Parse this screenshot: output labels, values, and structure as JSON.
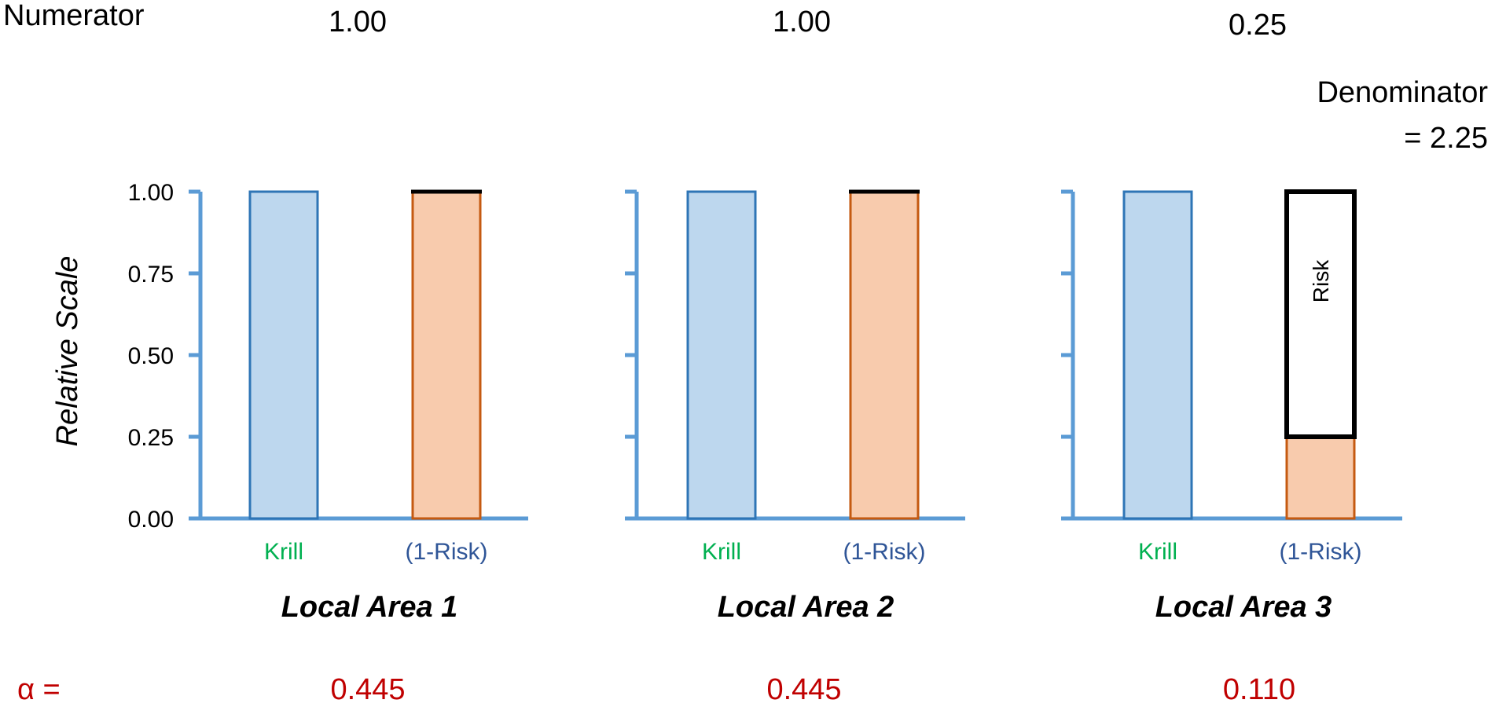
{
  "labels": {
    "numerator": "Numerator",
    "denominator_line1": "Denominator",
    "denominator_line2": "= 2.25",
    "alpha_label": "α ="
  },
  "colors": {
    "axis": "#5b9bd5",
    "krill_fill": "#bdd7ee",
    "krill_stroke": "#2e75b6",
    "one_minus_risk_fill": "#f8cbad",
    "one_minus_risk_stroke": "#c55a11",
    "risk_stroke": "#000000",
    "krill_label": "#00b050",
    "one_minus_risk_label": "#2f5597",
    "alpha": "#c00000",
    "text": "#000000"
  },
  "chart_data": {
    "type": "bar",
    "ylabel": "Relative Scale",
    "ylim": [
      0,
      1
    ],
    "yticks": [
      "0.00",
      "0.25",
      "0.50",
      "0.75",
      "1.00"
    ],
    "yticks_values": [
      0,
      0.25,
      0.5,
      0.75,
      1.0
    ],
    "categories": [
      "Krill",
      "(1-Risk)"
    ],
    "panels": [
      {
        "title": "Local Area 1",
        "numerator": "1.00",
        "alpha": "0.445",
        "krill": 1.0,
        "one_minus_risk": 1.0,
        "risk": 0.0
      },
      {
        "title": "Local Area 2",
        "numerator": "1.00",
        "alpha": "0.445",
        "krill": 1.0,
        "one_minus_risk": 1.0,
        "risk": 0.0
      },
      {
        "title": "Local Area 3",
        "numerator": "0.25",
        "alpha": "0.110",
        "krill": 1.0,
        "one_minus_risk": 0.25,
        "risk": 0.75,
        "risk_label": "Risk"
      }
    ]
  }
}
